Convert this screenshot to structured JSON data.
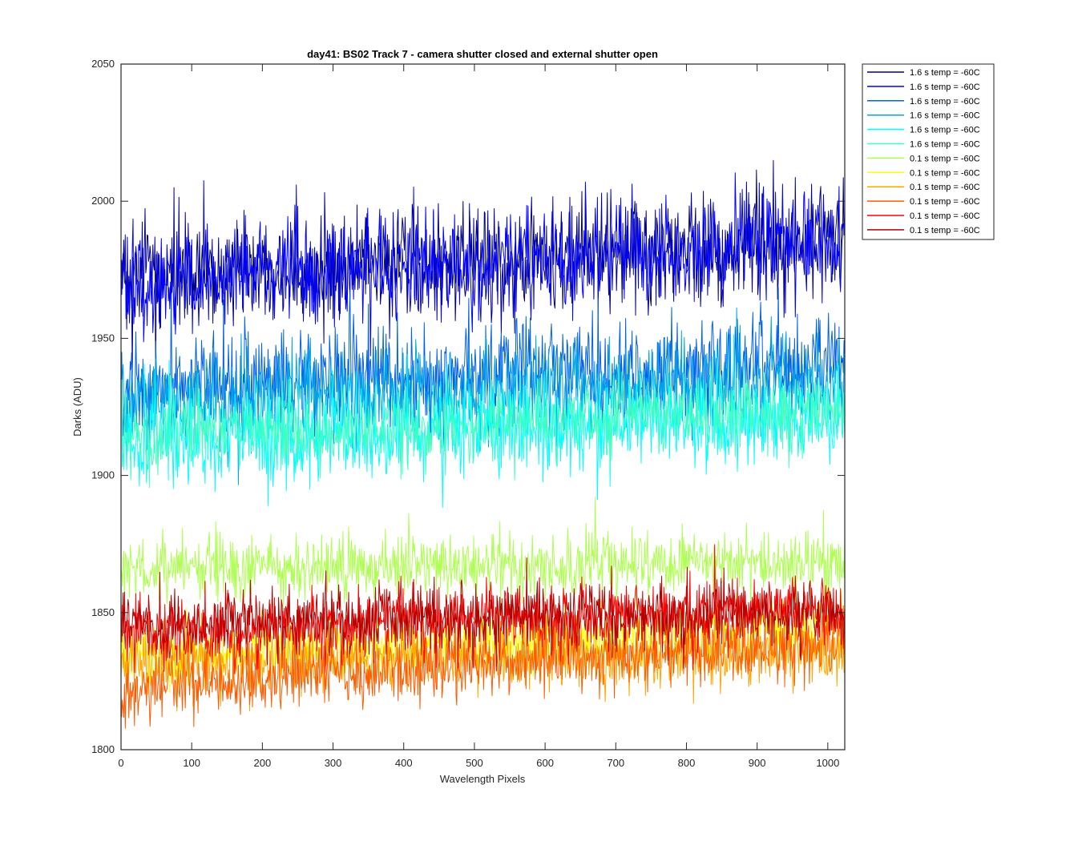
{
  "chart_data": {
    "type": "line",
    "title": "day41: BS02  Track 7 - camera shutter closed and external shutter open",
    "xlabel": "Wavelength Pixels",
    "ylabel": "Darks (ADU)",
    "xlim": [
      0,
      1024
    ],
    "ylim": [
      1800,
      2050
    ],
    "xticks": [
      "0",
      "100",
      "200",
      "300",
      "400",
      "500",
      "600",
      "700",
      "800",
      "900",
      "1000"
    ],
    "yticks": [
      "1800",
      "1850",
      "1900",
      "1950",
      "2000",
      "2050"
    ],
    "grid": false,
    "legend_placement": "outside-top-right",
    "noise_seed": 41,
    "series": [
      {
        "name": "1.6 s temp = -60C",
        "color": "#00008f",
        "base_start": 1972,
        "base_end": 1985,
        "amplitude": 13
      },
      {
        "name": "1.6 s temp = -60C",
        "color": "#0000ff",
        "base_start": 1970,
        "base_end": 1984,
        "amplitude": 13
      },
      {
        "name": "1.6 s temp = -60C",
        "color": "#0060e6",
        "base_start": 1932,
        "base_end": 1942,
        "amplitude": 12
      },
      {
        "name": "1.6 s temp = -60C",
        "color": "#00a6e8",
        "base_start": 1928,
        "base_end": 1934,
        "amplitude": 11
      },
      {
        "name": "1.6 s temp = -60C",
        "color": "#00ffff",
        "base_start": 1912,
        "base_end": 1922,
        "amplitude": 11
      },
      {
        "name": "1.6 s temp = -60C",
        "color": "#40ffbf",
        "base_start": 1915,
        "base_end": 1924,
        "amplitude": 9
      },
      {
        "name": "0.1 s temp = -60C",
        "color": "#adff4f",
        "base_start": 1866,
        "base_end": 1868,
        "amplitude": 8
      },
      {
        "name": "0.1 s temp = -60C",
        "color": "#ffff00",
        "base_start": 1834,
        "base_end": 1845,
        "amplitude": 7
      },
      {
        "name": "0.1 s temp = -60C",
        "color": "#ffa600",
        "base_start": 1832,
        "base_end": 1836,
        "amplitude": 8
      },
      {
        "name": "0.1 s temp = -60C",
        "color": "#ff5a00",
        "base_start": 1822,
        "base_end": 1840,
        "amplitude": 8
      },
      {
        "name": "0.1 s temp = -60C",
        "color": "#ff0000",
        "base_start": 1842,
        "base_end": 1852,
        "amplitude": 8
      },
      {
        "name": "0.1 s temp = -60C",
        "color": "#b30000",
        "base_start": 1846,
        "base_end": 1850,
        "amplitude": 8
      }
    ]
  }
}
